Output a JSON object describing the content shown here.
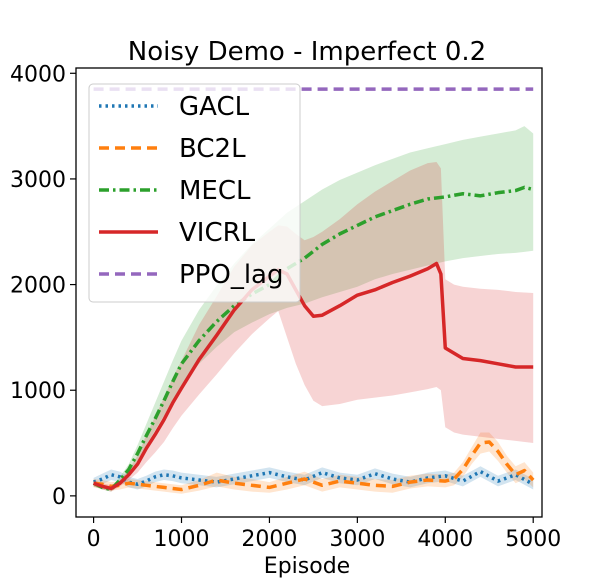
{
  "chart_data": {
    "type": "line",
    "title": "Noisy Demo - Imperfect 0.2",
    "xlabel": "Episode",
    "ylabel": "",
    "xlim": [
      -200,
      5100
    ],
    "ylim": [
      -200,
      4050
    ],
    "xticks": [
      0,
      1000,
      2000,
      3000,
      4000,
      5000
    ],
    "xtick_labels": [
      "0",
      "1000",
      "2000",
      "3000",
      "4000",
      "5000"
    ],
    "yticks": [
      0,
      1000,
      2000,
      3000,
      4000
    ],
    "ytick_labels": [
      "0",
      "1000",
      "2000",
      "3000",
      "4000"
    ],
    "legend_position": "upper-left",
    "series": [
      {
        "name": "GACL",
        "color": "#1f77b4",
        "style": "dotted",
        "x": [
          0,
          100,
          200,
          300,
          400,
          500,
          600,
          700,
          800,
          900,
          1000,
          1200,
          1400,
          1600,
          1800,
          2000,
          2200,
          2400,
          2600,
          2800,
          3000,
          3200,
          3400,
          3600,
          3800,
          4000,
          4200,
          4400,
          4600,
          4800,
          5000
        ],
        "y": [
          130,
          160,
          200,
          180,
          130,
          110,
          140,
          180,
          200,
          190,
          170,
          150,
          130,
          160,
          190,
          220,
          180,
          150,
          220,
          170,
          150,
          210,
          160,
          130,
          170,
          190,
          140,
          230,
          140,
          200,
          110
        ],
        "lower": [
          90,
          110,
          150,
          130,
          80,
          60,
          90,
          130,
          150,
          140,
          120,
          100,
          80,
          110,
          140,
          170,
          130,
          100,
          170,
          120,
          100,
          160,
          110,
          80,
          120,
          140,
          90,
          180,
          90,
          150,
          60
        ],
        "upper": [
          170,
          210,
          250,
          230,
          180,
          160,
          190,
          230,
          250,
          240,
          220,
          200,
          180,
          210,
          240,
          270,
          230,
          200,
          270,
          220,
          200,
          260,
          210,
          180,
          220,
          240,
          190,
          280,
          190,
          250,
          160
        ]
      },
      {
        "name": "BC2L",
        "color": "#ff7f0e",
        "style": "dashed",
        "x": [
          0,
          100,
          200,
          300,
          400,
          500,
          600,
          700,
          800,
          900,
          1000,
          1200,
          1400,
          1600,
          1800,
          2000,
          2200,
          2400,
          2600,
          2800,
          3000,
          3200,
          3400,
          3600,
          3800,
          4000,
          4100,
          4200,
          4300,
          4400,
          4500,
          4600,
          4700,
          4800,
          4900,
          5000
        ],
        "y": [
          120,
          110,
          90,
          100,
          120,
          110,
          100,
          90,
          80,
          70,
          60,
          100,
          150,
          120,
          100,
          80,
          120,
          160,
          100,
          140,
          120,
          100,
          90,
          130,
          150,
          140,
          160,
          250,
          380,
          500,
          510,
          420,
          300,
          200,
          240,
          150
        ],
        "lower": [
          80,
          70,
          50,
          60,
          80,
          70,
          60,
          50,
          40,
          30,
          20,
          50,
          90,
          60,
          40,
          30,
          60,
          100,
          40,
          80,
          60,
          40,
          30,
          70,
          90,
          80,
          100,
          180,
          300,
          400,
          420,
          330,
          220,
          120,
          160,
          80
        ],
        "upper": [
          160,
          150,
          130,
          140,
          160,
          150,
          140,
          130,
          120,
          110,
          100,
          150,
          220,
          180,
          160,
          130,
          180,
          230,
          160,
          200,
          180,
          160,
          150,
          190,
          210,
          200,
          220,
          320,
          460,
          600,
          600,
          510,
          380,
          280,
          320,
          220
        ]
      },
      {
        "name": "MECL",
        "color": "#2ca02c",
        "style": "dashdot",
        "x": [
          0,
          100,
          200,
          300,
          400,
          500,
          600,
          700,
          800,
          900,
          1000,
          1200,
          1400,
          1600,
          1800,
          2000,
          2200,
          2400,
          2600,
          2800,
          3000,
          3200,
          3400,
          3600,
          3800,
          4000,
          4200,
          4400,
          4600,
          4800,
          4900,
          5000
        ],
        "y": [
          120,
          80,
          60,
          150,
          250,
          400,
          570,
          730,
          900,
          1080,
          1250,
          1470,
          1650,
          1800,
          1910,
          2000,
          2150,
          2250,
          2380,
          2480,
          2560,
          2640,
          2700,
          2760,
          2810,
          2830,
          2860,
          2840,
          2870,
          2890,
          2920,
          2900
        ],
        "lower": [
          90,
          60,
          40,
          120,
          200,
          330,
          480,
          620,
          760,
          910,
          1050,
          1250,
          1410,
          1550,
          1640,
          1720,
          1780,
          1820,
          1880,
          1930,
          1980,
          2050,
          2100,
          2140,
          2180,
          2220,
          2250,
          2270,
          2290,
          2300,
          2310,
          2320
        ],
        "upper": [
          150,
          100,
          80,
          180,
          300,
          480,
          680,
          880,
          1080,
          1280,
          1470,
          1760,
          1990,
          2200,
          2380,
          2530,
          2680,
          2790,
          2900,
          2990,
          3060,
          3130,
          3190,
          3250,
          3290,
          3330,
          3370,
          3400,
          3430,
          3460,
          3500,
          3430
        ]
      },
      {
        "name": "VICRL",
        "color": "#d62728",
        "style": "solid",
        "x": [
          0,
          100,
          200,
          300,
          400,
          500,
          600,
          700,
          800,
          900,
          1000,
          1200,
          1400,
          1600,
          1800,
          2000,
          2100,
          2200,
          2300,
          2400,
          2500,
          2600,
          2800,
          3000,
          3200,
          3400,
          3600,
          3800,
          3900,
          3950,
          4000,
          4100,
          4200,
          4400,
          4600,
          4800,
          5000
        ],
        "y": [
          120,
          90,
          70,
          120,
          200,
          300,
          450,
          580,
          720,
          880,
          1020,
          1290,
          1520,
          1760,
          1950,
          2080,
          2140,
          2100,
          1950,
          1800,
          1700,
          1710,
          1800,
          1900,
          1950,
          2020,
          2080,
          2150,
          2200,
          2100,
          1400,
          1350,
          1300,
          1280,
          1250,
          1220,
          1220
        ],
        "lower": [
          90,
          60,
          40,
          90,
          150,
          220,
          320,
          410,
          510,
          640,
          760,
          960,
          1150,
          1350,
          1530,
          1680,
          1750,
          1500,
          1250,
          1050,
          900,
          850,
          870,
          910,
          930,
          950,
          980,
          1010,
          1030,
          1000,
          650,
          600,
          580,
          560,
          540,
          520,
          500
        ],
        "upper": [
          150,
          120,
          100,
          150,
          250,
          380,
          580,
          750,
          930,
          1120,
          1280,
          1620,
          1890,
          2170,
          2370,
          2500,
          2560,
          2550,
          2480,
          2420,
          2450,
          2500,
          2620,
          2760,
          2880,
          2980,
          3080,
          3150,
          3160,
          3100,
          2050,
          2000,
          1980,
          1960,
          1950,
          1930,
          1920
        ]
      },
      {
        "name": "PPO_lag",
        "color": "#9467bd",
        "style": "dashed",
        "x": [
          0,
          5000
        ],
        "y": [
          3850,
          3850
        ]
      }
    ]
  }
}
